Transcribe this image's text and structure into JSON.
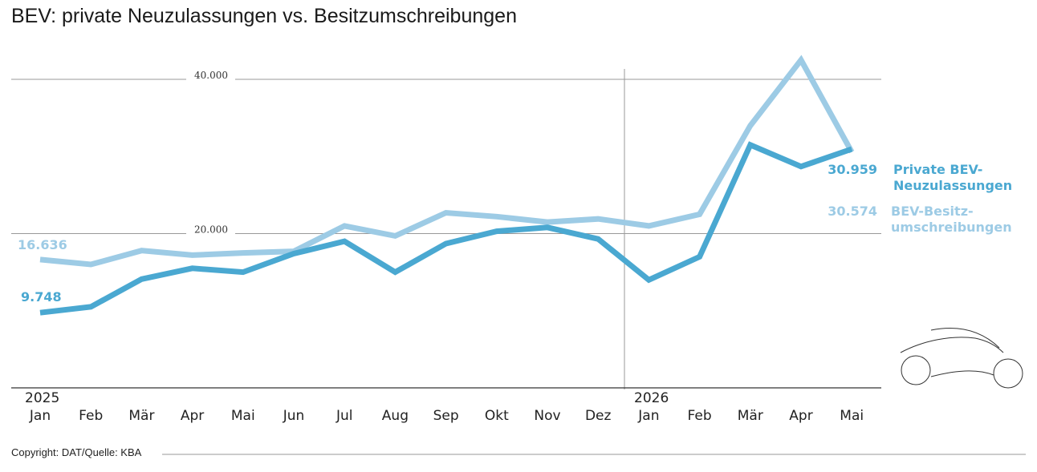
{
  "title": "BEV: private Neuzulassungen vs. Besitzumschreibungen",
  "copyright": "Copyright: DAT/Quelle: KBA",
  "year_labels": [
    "2025",
    "2026"
  ],
  "colors": {
    "neuzulassungen": "#4aa8d1",
    "besitz": "#9dcbe5",
    "grid": "#999999",
    "axis": "#333333"
  },
  "icon": "car-outline-icon",
  "chart_data": {
    "type": "line",
    "title": "BEV: private Neuzulassungen vs. Besitzumschreibungen",
    "x": [
      "Jan",
      "Feb",
      "Mär",
      "Apr",
      "Mai",
      "Jun",
      "Jul",
      "Aug",
      "Sep",
      "Okt",
      "Nov",
      "Dez",
      "Jan",
      "Feb",
      "Mär",
      "Apr",
      "Mai"
    ],
    "ylim": [
      0,
      40000
    ],
    "yticks": [
      {
        "value": 20000,
        "label": "20.000"
      },
      {
        "value": 40000,
        "label": "40.000"
      }
    ],
    "grid": true,
    "series": [
      {
        "name_lines": [
          "Private BEV-",
          "Neuzulassungen"
        ],
        "values": [
          9748,
          10500,
          14100,
          15500,
          15000,
          17400,
          19000,
          15000,
          18700,
          20300,
          20800,
          19300,
          14000,
          17000,
          31500,
          28700,
          30959
        ],
        "start_label": "9.748",
        "end_label": "30.959"
      },
      {
        "name_lines": [
          "BEV-Besitz-",
          "umschreibungen"
        ],
        "values": [
          16636,
          16000,
          17800,
          17200,
          17500,
          17700,
          21000,
          19700,
          22700,
          22200,
          21500,
          21900,
          21000,
          22500,
          34000,
          42500,
          30574
        ],
        "start_label": "16.636",
        "end_label": "30.574"
      }
    ]
  }
}
